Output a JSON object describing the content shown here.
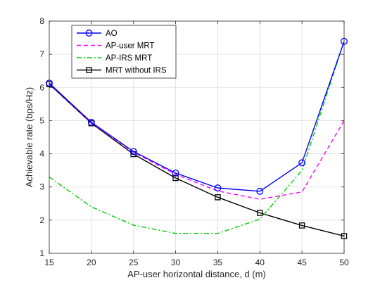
{
  "chart_data": {
    "type": "line",
    "title": "",
    "xlabel": "AP-user horizontal distance, d (m)",
    "ylabel": "Achievable rate (bps/Hz)",
    "xlim": [
      15,
      50
    ],
    "ylim": [
      1,
      8
    ],
    "x": [
      15,
      20,
      25,
      30,
      35,
      40,
      45,
      50
    ],
    "xticks": [
      "15",
      "20",
      "25",
      "30",
      "35",
      "40",
      "45",
      "50"
    ],
    "yticks": [
      "1",
      "2",
      "3",
      "4",
      "5",
      "6",
      "7",
      "8"
    ],
    "grid": true,
    "legend_position": "top-left",
    "series": [
      {
        "name": "AO",
        "values": [
          6.13,
          4.95,
          4.07,
          3.42,
          2.97,
          2.87,
          3.73,
          7.39
        ],
        "color": "#0000ff",
        "dash": "solid",
        "marker": "circle"
      },
      {
        "name": "AP-user MRT",
        "values": [
          6.12,
          4.93,
          4.05,
          3.38,
          2.88,
          2.63,
          2.85,
          5.0
        ],
        "color": "#ff00ff",
        "dash": "dashed",
        "marker": "none"
      },
      {
        "name": "AP-IRS MRT",
        "values": [
          3.3,
          2.4,
          1.85,
          1.6,
          1.6,
          2.03,
          3.5,
          7.39
        ],
        "color": "#00cc00",
        "dash": "dashdot",
        "marker": "none"
      },
      {
        "name": "MRT without IRS",
        "values": [
          6.1,
          4.92,
          3.99,
          3.27,
          2.69,
          2.22,
          1.84,
          1.52
        ],
        "color": "#000000",
        "dash": "solid",
        "marker": "square"
      }
    ]
  }
}
